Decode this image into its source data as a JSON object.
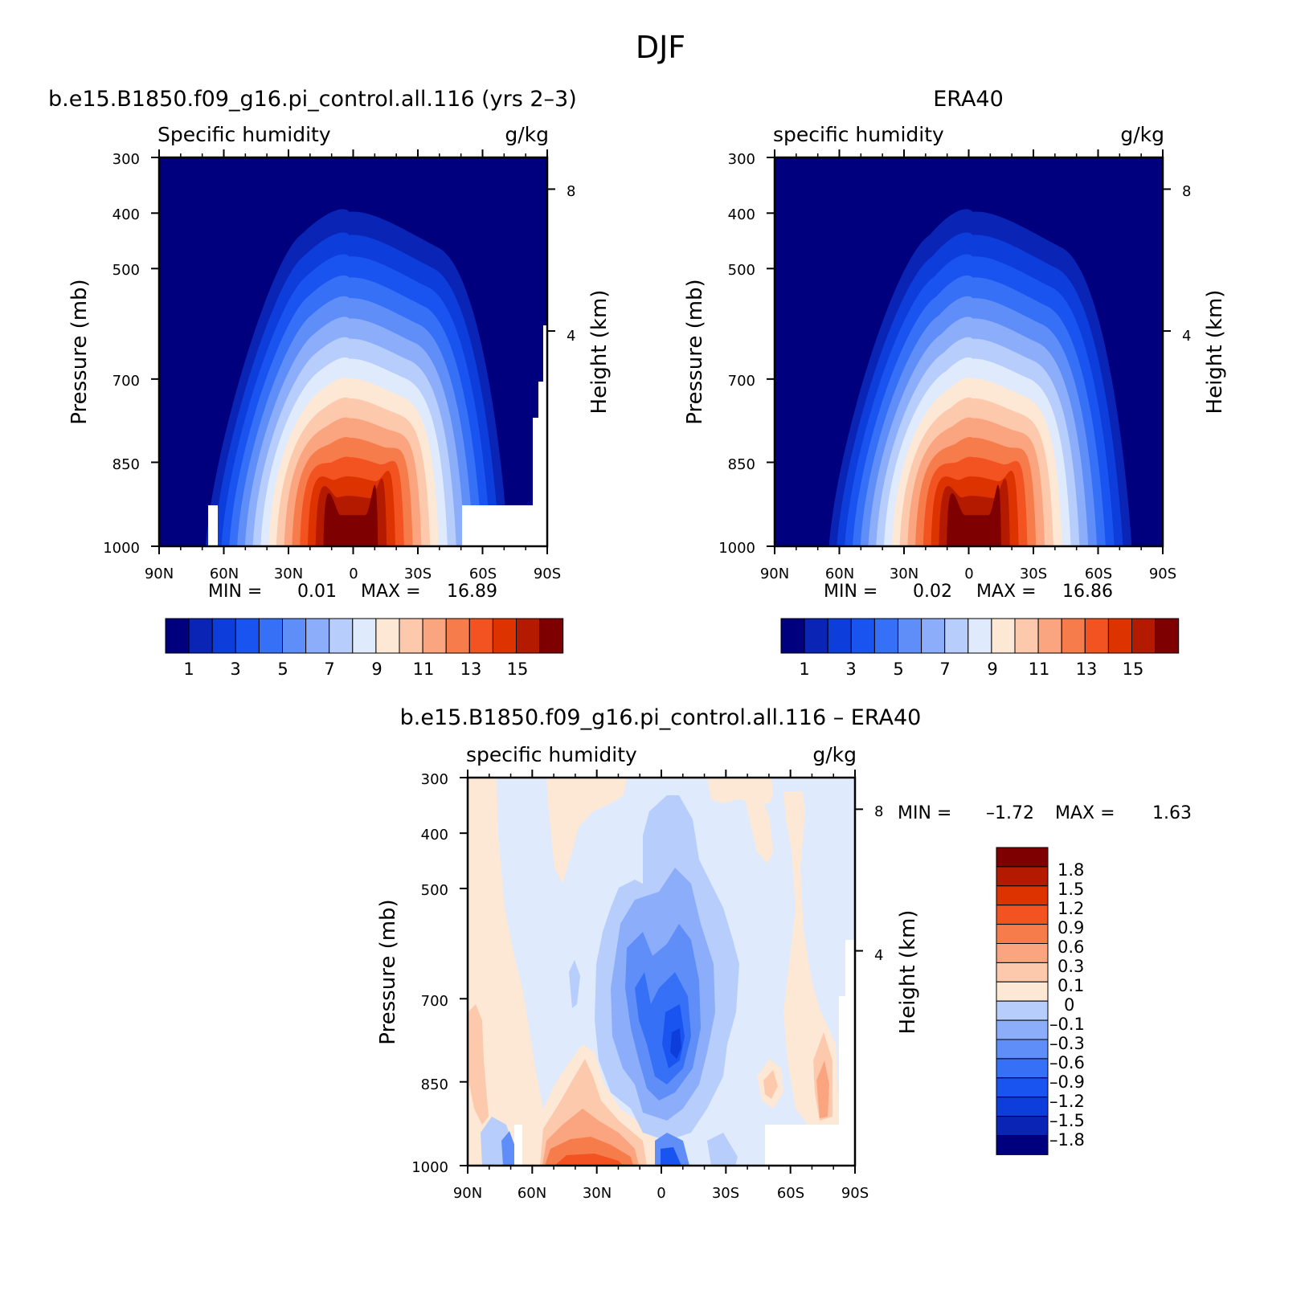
{
  "figure": {
    "title": "DJF"
  },
  "chart_data": [
    {
      "type": "heatmap",
      "panel_title": "b.e15.B1850.f09_g16.pi_control.all.116 (yrs 2–3)",
      "left_label": "Specific humidity",
      "units": "g/kg",
      "xlabel": "",
      "ylabel": "Pressure (mb)",
      "right_ylabel": "Height (km)",
      "x_ticks": [
        "90N",
        "60N",
        "30N",
        "0",
        "30S",
        "60S",
        "90S"
      ],
      "y_ticks": [
        "300",
        "400",
        "500",
        "700",
        "850",
        "1000"
      ],
      "right_ticks": [
        "8",
        "4"
      ],
      "xlim": [
        -90,
        90
      ],
      "ylim": [
        1000,
        300
      ],
      "scale": "log pressure",
      "min_label": "MIN =",
      "min_value": "0.01",
      "max_label": "MAX =",
      "max_value": "16.89",
      "colorbar_ticks": [
        "1",
        "3",
        "5",
        "7",
        "9",
        "11",
        "13",
        "15"
      ],
      "levels": [
        1,
        2,
        3,
        4,
        5,
        6,
        7,
        8,
        9,
        10,
        11,
        12,
        13,
        14,
        15
      ]
    },
    {
      "type": "heatmap",
      "panel_title": "ERA40",
      "left_label": "specific humidity",
      "units": "g/kg",
      "xlabel": "",
      "ylabel": "Pressure (mb)",
      "right_ylabel": "Height (km)",
      "x_ticks": [
        "90N",
        "60N",
        "30N",
        "0",
        "30S",
        "60S",
        "90S"
      ],
      "y_ticks": [
        "300",
        "400",
        "500",
        "700",
        "850",
        "1000"
      ],
      "right_ticks": [
        "8",
        "4"
      ],
      "xlim": [
        -90,
        90
      ],
      "ylim": [
        1000,
        300
      ],
      "scale": "log pressure",
      "min_label": "MIN =",
      "min_value": "0.02",
      "max_label": "MAX =",
      "max_value": "16.86",
      "colorbar_ticks": [
        "1",
        "3",
        "5",
        "7",
        "9",
        "11",
        "13",
        "15"
      ],
      "levels": [
        1,
        2,
        3,
        4,
        5,
        6,
        7,
        8,
        9,
        10,
        11,
        12,
        13,
        14,
        15
      ]
    },
    {
      "type": "heatmap",
      "panel_title": "b.e15.B1850.f09_g16.pi_control.all.116 – ERA40",
      "left_label": "specific humidity",
      "units": "g/kg",
      "xlabel": "",
      "ylabel": "Pressure (mb)",
      "right_ylabel": "Height (km)",
      "x_ticks": [
        "90N",
        "60N",
        "30N",
        "0",
        "30S",
        "60S",
        "90S"
      ],
      "y_ticks": [
        "300",
        "400",
        "500",
        "700",
        "850",
        "1000"
      ],
      "right_ticks": [
        "8",
        "4"
      ],
      "xlim": [
        -90,
        90
      ],
      "ylim": [
        1000,
        300
      ],
      "scale": "log pressure",
      "min_label": "MIN =",
      "min_value": "–1.72",
      "max_label": "MAX =",
      "max_value": "1.63",
      "colorbar_ticks": [
        "1.8",
        "1.5",
        "1.2",
        "0.9",
        "0.6",
        "0.3",
        "0.1",
        "0",
        "–0.1",
        "–0.3",
        "–0.6",
        "–0.9",
        "–1.2",
        "–1.5",
        "–1.8"
      ],
      "levels": [
        1.8,
        1.5,
        1.2,
        0.9,
        0.6,
        0.3,
        0.1,
        0,
        -0.1,
        -0.3,
        -0.6,
        -0.9,
        -1.2,
        -1.5,
        -1.8
      ]
    }
  ],
  "palette": [
    "#00007f",
    "#0a24b5",
    "#0d3ddb",
    "#1a54f0",
    "#3570f7",
    "#5f8ef8",
    "#8caefa",
    "#b7cdfb",
    "#dfeafc",
    "#fde8d6",
    "#fcc9ad",
    "#faa57f",
    "#f77c4c",
    "#f25320",
    "#dd3300",
    "#b31a00",
    "#7f0000"
  ]
}
